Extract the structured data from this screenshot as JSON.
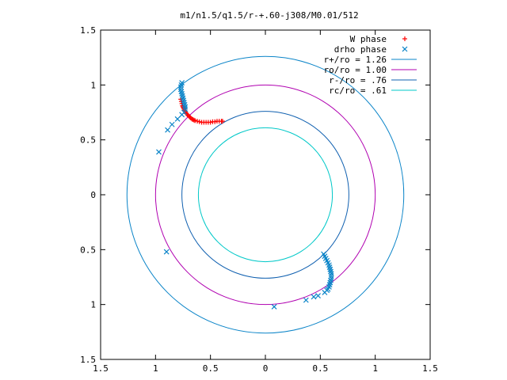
{
  "chart_data": {
    "type": "scatter",
    "title": "m1/n1.5/q1.5/r-+.60-j308/M0.01/512",
    "xlim": [
      -1.5,
      1.5
    ],
    "ylim": [
      -1.5,
      1.5
    ],
    "xticks": [
      {
        "v": -1.5,
        "label": "1.5"
      },
      {
        "v": -1,
        "label": "1"
      },
      {
        "v": -0.5,
        "label": "0.5"
      },
      {
        "v": 0,
        "label": "0"
      },
      {
        "v": 0.5,
        "label": "0.5"
      },
      {
        "v": 1,
        "label": "1"
      },
      {
        "v": 1.5,
        "label": "1.5"
      }
    ],
    "yticks": [
      {
        "v": 1.5,
        "label": "1.5"
      },
      {
        "v": 1,
        "label": "1"
      },
      {
        "v": 0.5,
        "label": "0.5"
      },
      {
        "v": 0,
        "label": "0"
      },
      {
        "v": -0.5,
        "label": "0.5"
      },
      {
        "v": -1,
        "label": "1"
      },
      {
        "v": -1.5,
        "label": "1.5"
      }
    ],
    "grid": false,
    "legend_position": "top-right",
    "circles": [
      {
        "name": "r+/ro = 1.26",
        "r": 1.26,
        "color": "#0a84c8"
      },
      {
        "name": "ro/ro = 1.00",
        "r": 1.0,
        "color": "#b000b0"
      },
      {
        "name": "r-/ro = .76",
        "r": 0.76,
        "color": "#1060b0"
      },
      {
        "name": "rc/ro = .61",
        "r": 0.61,
        "color": "#00c8c8"
      }
    ],
    "series": [
      {
        "name": "W phase",
        "marker": "plus",
        "color": "#ff0000",
        "points": [
          [
            -0.77,
            0.87
          ],
          [
            -0.765,
            0.85
          ],
          [
            -0.76,
            0.83
          ],
          [
            -0.755,
            0.81
          ],
          [
            -0.75,
            0.8
          ],
          [
            -0.745,
            0.79
          ],
          [
            -0.74,
            0.78
          ],
          [
            -0.735,
            0.77
          ],
          [
            -0.73,
            0.76
          ],
          [
            -0.725,
            0.75
          ],
          [
            -0.72,
            0.74
          ],
          [
            -0.71,
            0.73
          ],
          [
            -0.7,
            0.72
          ],
          [
            -0.69,
            0.71
          ],
          [
            -0.68,
            0.7
          ],
          [
            -0.67,
            0.69
          ],
          [
            -0.66,
            0.685
          ],
          [
            -0.65,
            0.68
          ],
          [
            -0.64,
            0.675
          ],
          [
            -0.62,
            0.67
          ],
          [
            -0.6,
            0.665
          ],
          [
            -0.58,
            0.66
          ],
          [
            -0.56,
            0.66
          ],
          [
            -0.54,
            0.66
          ],
          [
            -0.52,
            0.66
          ],
          [
            -0.5,
            0.66
          ],
          [
            -0.48,
            0.665
          ],
          [
            -0.46,
            0.665
          ],
          [
            -0.44,
            0.67
          ],
          [
            -0.42,
            0.67
          ],
          [
            -0.4,
            0.67
          ],
          [
            -0.39,
            0.67
          ]
        ]
      },
      {
        "name": "drho phase",
        "marker": "x",
        "color": "#0a84c8",
        "points": [
          [
            -0.76,
            1.02
          ],
          [
            -0.765,
            1.0
          ],
          [
            -0.77,
            0.98
          ],
          [
            -0.77,
            0.96
          ],
          [
            -0.765,
            0.94
          ],
          [
            -0.76,
            0.92
          ],
          [
            -0.755,
            0.9
          ],
          [
            -0.75,
            0.88
          ],
          [
            -0.745,
            0.86
          ],
          [
            -0.74,
            0.84
          ],
          [
            -0.735,
            0.82
          ],
          [
            -0.73,
            0.8
          ],
          [
            -0.73,
            0.78
          ],
          [
            -0.74,
            0.75
          ],
          [
            -0.76,
            0.73
          ],
          [
            -0.8,
            0.69
          ],
          [
            -0.85,
            0.64
          ],
          [
            -0.89,
            0.59
          ],
          [
            -0.97,
            0.39
          ],
          [
            -0.9,
            -0.52
          ],
          [
            0.53,
            -0.54
          ],
          [
            0.54,
            -0.56
          ],
          [
            0.55,
            -0.58
          ],
          [
            0.56,
            -0.6
          ],
          [
            0.57,
            -0.62
          ],
          [
            0.58,
            -0.64
          ],
          [
            0.585,
            -0.66
          ],
          [
            0.59,
            -0.68
          ],
          [
            0.595,
            -0.7
          ],
          [
            0.6,
            -0.72
          ],
          [
            0.6,
            -0.74
          ],
          [
            0.6,
            -0.76
          ],
          [
            0.595,
            -0.78
          ],
          [
            0.59,
            -0.8
          ],
          [
            0.585,
            -0.82
          ],
          [
            0.58,
            -0.84
          ],
          [
            0.57,
            -0.86
          ],
          [
            0.56,
            -0.87
          ],
          [
            0.54,
            -0.89
          ],
          [
            0.48,
            -0.92
          ],
          [
            0.44,
            -0.93
          ],
          [
            0.37,
            -0.96
          ],
          [
            0.08,
            -1.02
          ]
        ]
      }
    ]
  }
}
